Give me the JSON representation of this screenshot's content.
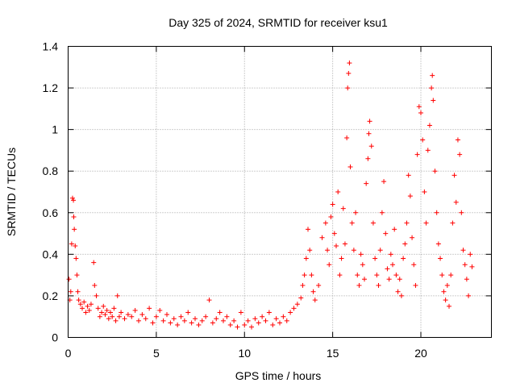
{
  "chart_data": {
    "type": "scatter",
    "title": "Day 325 of 2024, SRMTID for receiver ksu1",
    "xlabel": "GPS time / hours",
    "ylabel": "SRMTID / TECUs",
    "xlim": [
      0,
      24
    ],
    "ylim": [
      0,
      1.4
    ],
    "x_ticks": [
      0,
      5,
      10,
      15,
      20
    ],
    "x_tick_labels": [
      "0",
      "5",
      "10",
      "15",
      "20"
    ],
    "y_ticks": [
      0,
      0.2,
      0.4,
      0.6,
      0.8,
      1,
      1.2,
      1.4
    ],
    "y_tick_labels": [
      "0",
      "0.2",
      "0.4",
      "0.6",
      "0.8",
      "1",
      "1.2",
      "1.4"
    ],
    "grid": true,
    "marker": "+",
    "series": [
      {
        "name": "ksu1",
        "color": "#ff0000",
        "points": [
          [
            0.05,
            0.28
          ],
          [
            0.1,
            0.18
          ],
          [
            0.15,
            0.22
          ],
          [
            0.2,
            0.45
          ],
          [
            0.25,
            0.67
          ],
          [
            0.3,
            0.66
          ],
          [
            0.32,
            0.58
          ],
          [
            0.35,
            0.52
          ],
          [
            0.4,
            0.44
          ],
          [
            0.45,
            0.38
          ],
          [
            0.5,
            0.3
          ],
          [
            0.55,
            0.22
          ],
          [
            0.6,
            0.18
          ],
          [
            0.7,
            0.16
          ],
          [
            0.8,
            0.14
          ],
          [
            0.9,
            0.17
          ],
          [
            1.0,
            0.12
          ],
          [
            1.1,
            0.15
          ],
          [
            1.2,
            0.13
          ],
          [
            1.3,
            0.16
          ],
          [
            1.45,
            0.36
          ],
          [
            1.5,
            0.25
          ],
          [
            1.6,
            0.2
          ],
          [
            1.7,
            0.14
          ],
          [
            1.8,
            0.1
          ],
          [
            1.9,
            0.12
          ],
          [
            2.0,
            0.15
          ],
          [
            2.1,
            0.11
          ],
          [
            2.2,
            0.13
          ],
          [
            2.3,
            0.09
          ],
          [
            2.4,
            0.12
          ],
          [
            2.5,
            0.1
          ],
          [
            2.6,
            0.14
          ],
          [
            2.7,
            0.08
          ],
          [
            2.8,
            0.2
          ],
          [
            2.9,
            0.1
          ],
          [
            3.0,
            0.12
          ],
          [
            3.2,
            0.09
          ],
          [
            3.4,
            0.11
          ],
          [
            3.6,
            0.1
          ],
          [
            3.8,
            0.13
          ],
          [
            4.0,
            0.08
          ],
          [
            4.2,
            0.11
          ],
          [
            4.4,
            0.09
          ],
          [
            4.6,
            0.14
          ],
          [
            4.8,
            0.07
          ],
          [
            5.0,
            0.1
          ],
          [
            5.2,
            0.13
          ],
          [
            5.4,
            0.08
          ],
          [
            5.6,
            0.11
          ],
          [
            5.8,
            0.07
          ],
          [
            6.0,
            0.09
          ],
          [
            6.2,
            0.06
          ],
          [
            6.4,
            0.1
          ],
          [
            6.6,
            0.08
          ],
          [
            6.8,
            0.12
          ],
          [
            7.0,
            0.07
          ],
          [
            7.2,
            0.09
          ],
          [
            7.4,
            0.06
          ],
          [
            7.6,
            0.08
          ],
          [
            7.8,
            0.1
          ],
          [
            8.0,
            0.18
          ],
          [
            8.2,
            0.07
          ],
          [
            8.4,
            0.09
          ],
          [
            8.6,
            0.12
          ],
          [
            8.8,
            0.08
          ],
          [
            9.0,
            0.1
          ],
          [
            9.2,
            0.06
          ],
          [
            9.4,
            0.08
          ],
          [
            9.6,
            0.05
          ],
          [
            9.8,
            0.12
          ],
          [
            10.0,
            0.06
          ],
          [
            10.2,
            0.08
          ],
          [
            10.4,
            0.05
          ],
          [
            10.6,
            0.09
          ],
          [
            10.8,
            0.07
          ],
          [
            11.0,
            0.1
          ],
          [
            11.2,
            0.08
          ],
          [
            11.4,
            0.12
          ],
          [
            11.6,
            0.06
          ],
          [
            11.8,
            0.09
          ],
          [
            12.0,
            0.07
          ],
          [
            12.2,
            0.1
          ],
          [
            12.4,
            0.08
          ],
          [
            12.6,
            0.12
          ],
          [
            12.8,
            0.14
          ],
          [
            13.0,
            0.16
          ],
          [
            13.2,
            0.19
          ],
          [
            13.3,
            0.25
          ],
          [
            13.4,
            0.3
          ],
          [
            13.5,
            0.38
          ],
          [
            13.6,
            0.52
          ],
          [
            13.7,
            0.42
          ],
          [
            13.8,
            0.3
          ],
          [
            13.9,
            0.22
          ],
          [
            14.0,
            0.18
          ],
          [
            14.2,
            0.25
          ],
          [
            14.4,
            0.48
          ],
          [
            14.6,
            0.55
          ],
          [
            14.7,
            0.42
          ],
          [
            14.8,
            0.35
          ],
          [
            14.9,
            0.58
          ],
          [
            15.0,
            0.64
          ],
          [
            15.1,
            0.5
          ],
          [
            15.2,
            0.44
          ],
          [
            15.3,
            0.7
          ],
          [
            15.4,
            0.3
          ],
          [
            15.5,
            0.38
          ],
          [
            15.6,
            0.62
          ],
          [
            15.7,
            0.45
          ],
          [
            15.8,
            0.96
          ],
          [
            15.85,
            1.2
          ],
          [
            15.9,
            1.27
          ],
          [
            15.95,
            1.32
          ],
          [
            16.0,
            0.82
          ],
          [
            16.1,
            0.55
          ],
          [
            16.2,
            0.42
          ],
          [
            16.3,
            0.6
          ],
          [
            16.4,
            0.3
          ],
          [
            16.5,
            0.25
          ],
          [
            16.6,
            0.4
          ],
          [
            16.7,
            0.35
          ],
          [
            16.8,
            0.28
          ],
          [
            16.9,
            0.74
          ],
          [
            17.0,
            0.86
          ],
          [
            17.05,
            0.98
          ],
          [
            17.1,
            1.04
          ],
          [
            17.2,
            0.92
          ],
          [
            17.3,
            0.55
          ],
          [
            17.4,
            0.38
          ],
          [
            17.5,
            0.3
          ],
          [
            17.6,
            0.25
          ],
          [
            17.7,
            0.42
          ],
          [
            17.8,
            0.6
          ],
          [
            17.9,
            0.75
          ],
          [
            18.0,
            0.5
          ],
          [
            18.1,
            0.33
          ],
          [
            18.2,
            0.28
          ],
          [
            18.3,
            0.4
          ],
          [
            18.4,
            0.35
          ],
          [
            18.5,
            0.52
          ],
          [
            18.6,
            0.3
          ],
          [
            18.7,
            0.22
          ],
          [
            18.8,
            0.28
          ],
          [
            18.9,
            0.2
          ],
          [
            19.0,
            0.38
          ],
          [
            19.1,
            0.45
          ],
          [
            19.2,
            0.55
          ],
          [
            19.3,
            0.78
          ],
          [
            19.4,
            0.68
          ],
          [
            19.5,
            0.48
          ],
          [
            19.6,
            0.35
          ],
          [
            19.7,
            0.25
          ],
          [
            19.8,
            0.88
          ],
          [
            19.9,
            1.11
          ],
          [
            20.0,
            1.08
          ],
          [
            20.1,
            0.95
          ],
          [
            20.2,
            0.7
          ],
          [
            20.3,
            0.55
          ],
          [
            20.4,
            0.9
          ],
          [
            20.5,
            1.02
          ],
          [
            20.6,
            1.2
          ],
          [
            20.65,
            1.26
          ],
          [
            20.7,
            1.14
          ],
          [
            20.8,
            0.8
          ],
          [
            20.9,
            0.6
          ],
          [
            21.0,
            0.45
          ],
          [
            21.1,
            0.38
          ],
          [
            21.2,
            0.3
          ],
          [
            21.3,
            0.22
          ],
          [
            21.4,
            0.18
          ],
          [
            21.5,
            0.25
          ],
          [
            21.6,
            0.15
          ],
          [
            21.7,
            0.3
          ],
          [
            21.8,
            0.55
          ],
          [
            21.9,
            0.78
          ],
          [
            22.0,
            0.65
          ],
          [
            22.1,
            0.95
          ],
          [
            22.2,
            0.88
          ],
          [
            22.3,
            0.6
          ],
          [
            22.4,
            0.42
          ],
          [
            22.5,
            0.35
          ],
          [
            22.6,
            0.28
          ],
          [
            22.7,
            0.2
          ],
          [
            22.8,
            0.4
          ],
          [
            22.9,
            0.34
          ]
        ]
      }
    ]
  }
}
